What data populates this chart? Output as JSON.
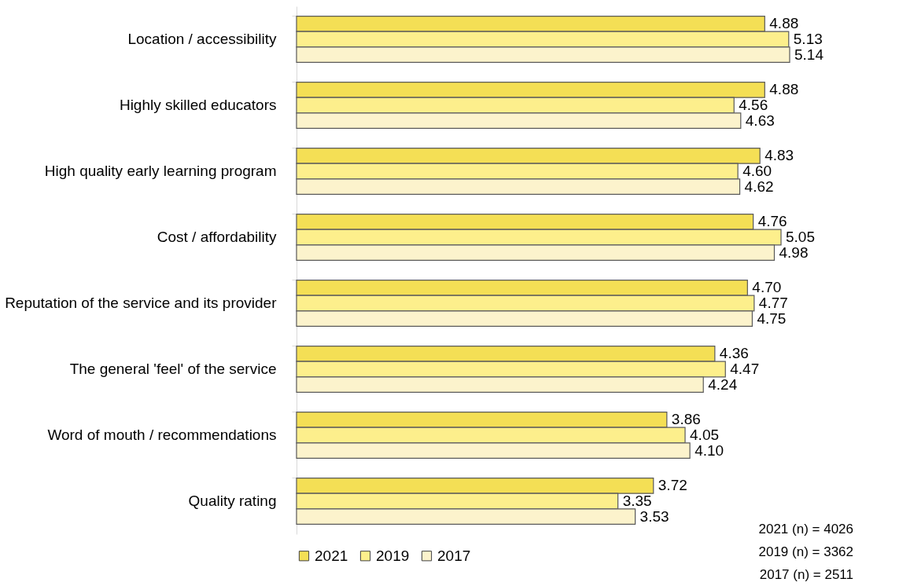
{
  "chart_data": {
    "type": "bar",
    "orientation": "horizontal",
    "categories": [
      "Location / accessibility",
      "Highly skilled educators",
      "High quality early learning program",
      "Cost / affordability",
      "Reputation of the service and its provider",
      "The general 'feel' of the service",
      "Word of mouth / recommendations",
      "Quality rating"
    ],
    "series": [
      {
        "name": "2021",
        "color": "#f4df55",
        "values": [
          4.88,
          4.88,
          4.83,
          4.76,
          4.7,
          4.36,
          3.86,
          3.72
        ],
        "value_labels": [
          "4.88",
          "4.88",
          "4.83",
          "4.76",
          "4.70",
          "4.36",
          "3.86",
          "3.72"
        ]
      },
      {
        "name": "2019",
        "color": "#fdef8c",
        "values": [
          5.13,
          4.56,
          4.6,
          5.05,
          4.77,
          4.47,
          4.05,
          3.35
        ],
        "value_labels": [
          "5.13",
          "4.56",
          "4.60",
          "5.05",
          "4.77",
          "4.47",
          "4.05",
          "3.35"
        ]
      },
      {
        "name": "2017",
        "color": "#fcf3cc",
        "values": [
          5.14,
          4.63,
          4.62,
          4.98,
          4.75,
          4.24,
          4.1,
          3.53
        ],
        "value_labels": [
          "5.14",
          "4.63",
          "4.62",
          "4.98",
          "4.75",
          "4.24",
          "4.10",
          "3.53"
        ]
      }
    ],
    "legend": "bottom",
    "grid": false,
    "annotations": [
      "2021 (n) = 4026",
      "2019 (n) = 3362",
      "2017 (n) = 2511"
    ]
  }
}
